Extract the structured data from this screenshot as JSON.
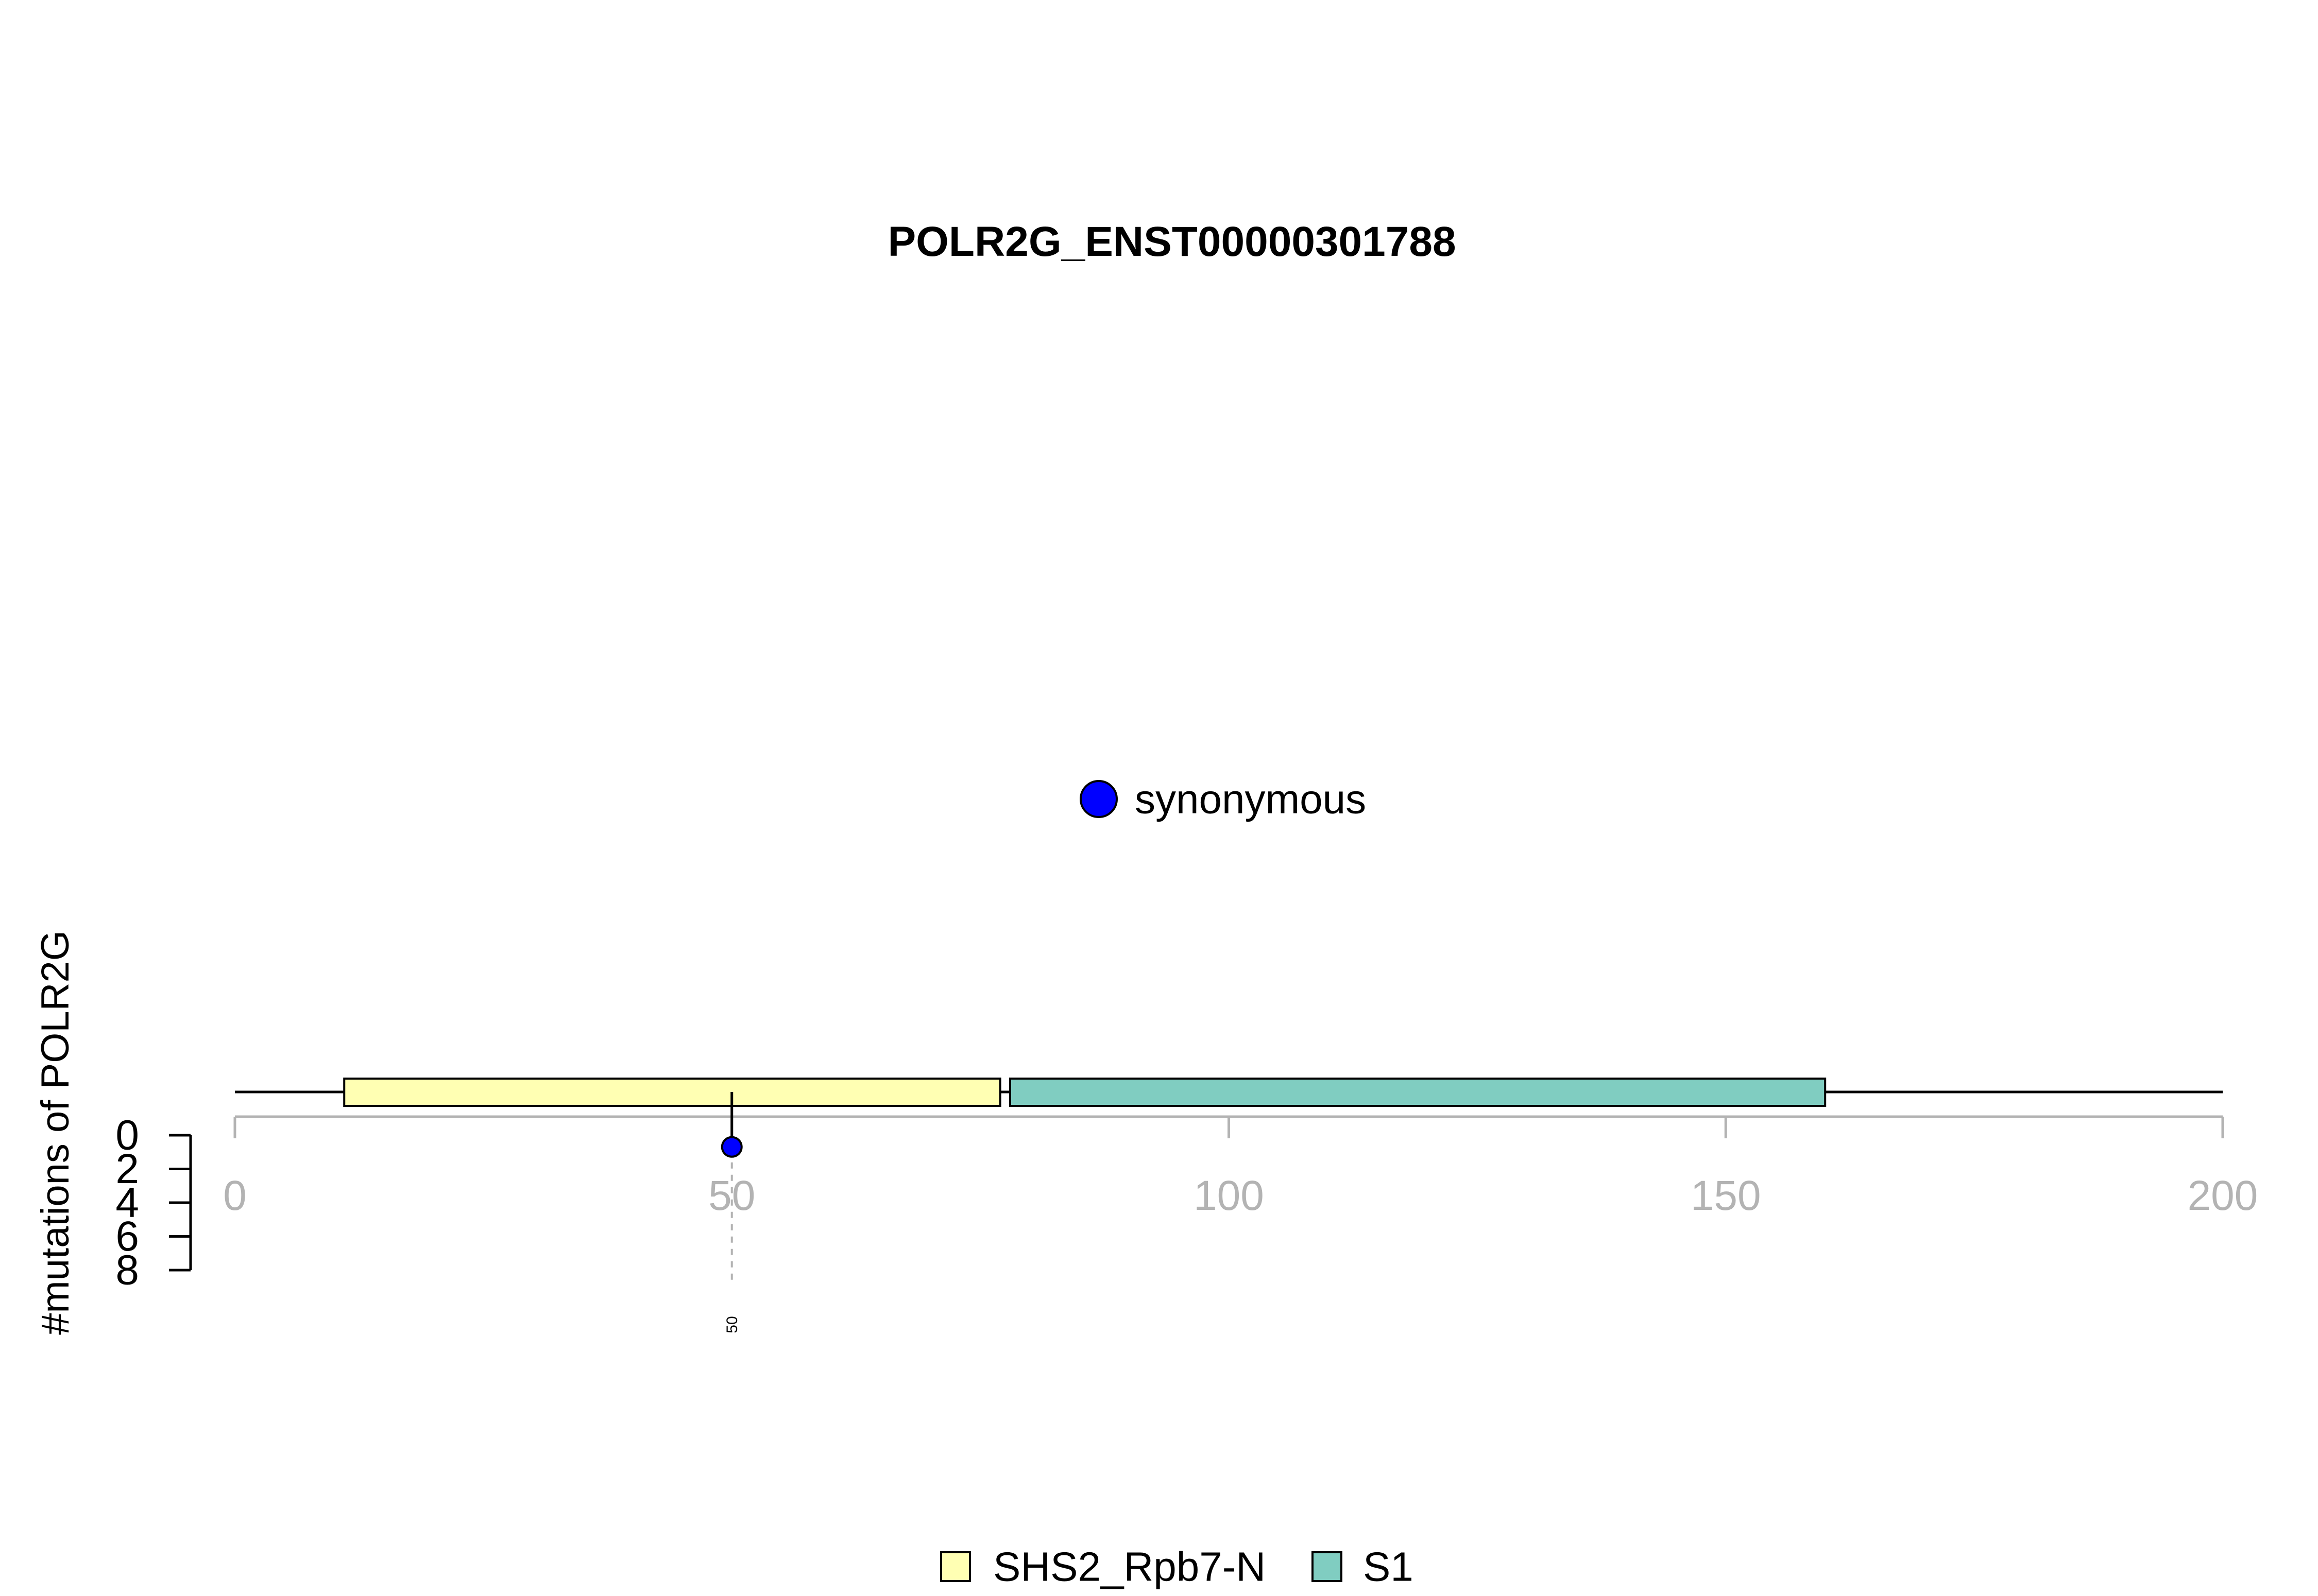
{
  "chart_data": {
    "type": "lollipop",
    "title": "POLR2G_ENST00000301788",
    "ylabel": "#mutations of POLR2G",
    "xlim": [
      0,
      200
    ],
    "x_ticks": [
      0,
      50,
      100,
      150,
      200
    ],
    "y_ticks": [
      0,
      2,
      4,
      6,
      8
    ],
    "protein_length": 200,
    "domains": [
      {
        "name": "SHS2_Rpb7-N",
        "start": 11,
        "end": 77,
        "color": "#ffffb3"
      },
      {
        "name": "S1",
        "start": 78,
        "end": 160,
        "color": "#80cdc1"
      }
    ],
    "mutations": [
      {
        "position": 50,
        "count": 1,
        "type": "synonymous",
        "label": "50",
        "color": "#0000ff"
      }
    ],
    "mutation_legend": [
      {
        "label": "synonymous",
        "color": "#0000ff"
      }
    ],
    "domain_legend": [
      {
        "label": "SHS2_Rpb7-N",
        "color": "#ffffb3"
      },
      {
        "label": "S1",
        "color": "#80cdc1"
      }
    ]
  }
}
